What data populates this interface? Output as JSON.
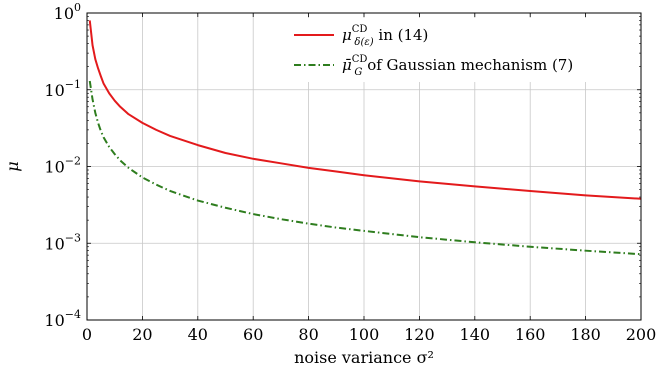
{
  "chart_data": {
    "type": "line",
    "xlabel": "noise variance σ²",
    "ylabel": "μ",
    "xlim": [
      0,
      200
    ],
    "ylim": [
      0.0001,
      1
    ],
    "yscale": "log",
    "grid": true,
    "legend_position": "top-right",
    "x_ticks": [
      0,
      20,
      40,
      60,
      80,
      100,
      120,
      140,
      160,
      180,
      200
    ],
    "x_tick_labels": [
      "0",
      "20",
      "40",
      "60",
      "80",
      "100",
      "120",
      "140",
      "160",
      "180",
      "200"
    ],
    "y_ticks": [
      0.0001,
      0.001,
      0.01,
      0.1,
      1
    ],
    "y_tick_labels": [
      {
        "base": "10",
        "exp": "−4"
      },
      {
        "base": "10",
        "exp": "−3"
      },
      {
        "base": "10",
        "exp": "−2"
      },
      {
        "base": "10",
        "exp": "−1"
      },
      {
        "base": "10",
        "exp": "0"
      }
    ],
    "series": [
      {
        "name": "μ^CD_δ(ε) in (14)",
        "legend": {
          "symbol": "μ",
          "sup": "CD",
          "sub": "δ(ε)",
          "suffix": " in (14)"
        },
        "color": "#e31a1c",
        "dash": "solid",
        "x": [
          1,
          2,
          3,
          4,
          5,
          6,
          8,
          10,
          12,
          15,
          20,
          25,
          30,
          40,
          50,
          60,
          70,
          80,
          90,
          100,
          120,
          140,
          160,
          180,
          200
        ],
        "y": [
          0.8,
          0.38,
          0.25,
          0.19,
          0.15,
          0.12,
          0.09,
          0.072,
          0.06,
          0.048,
          0.037,
          0.03,
          0.025,
          0.019,
          0.015,
          0.0126,
          0.011,
          0.0096,
          0.0086,
          0.0077,
          0.0064,
          0.0055,
          0.0048,
          0.0042,
          0.0038
        ]
      },
      {
        "name": "μ̄^CD_G of Gaussian mechanism (7)",
        "legend": {
          "symbol": "μ̄",
          "sup": "CD",
          "sub": "G",
          "suffix": " of Gaussian mechanism (7)"
        },
        "color": "#2e7d1e",
        "dash": "dashdot",
        "x": [
          1,
          2,
          3,
          4,
          5,
          6,
          8,
          10,
          12,
          15,
          20,
          25,
          30,
          40,
          50,
          60,
          70,
          80,
          90,
          100,
          120,
          140,
          160,
          180,
          200
        ],
        "y": [
          0.13,
          0.075,
          0.05,
          0.037,
          0.029,
          0.024,
          0.018,
          0.0145,
          0.012,
          0.0096,
          0.0072,
          0.0058,
          0.0048,
          0.0036,
          0.0029,
          0.0024,
          0.00206,
          0.0018,
          0.0016,
          0.00145,
          0.0012,
          0.00103,
          0.0009,
          0.0008,
          0.00072
        ]
      }
    ]
  }
}
